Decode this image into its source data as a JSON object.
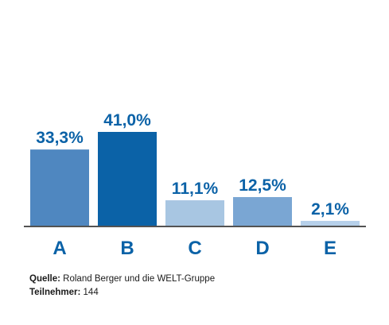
{
  "chart_data": {
    "type": "bar",
    "categories": [
      "A",
      "B",
      "C",
      "D",
      "E"
    ],
    "values": [
      33.3,
      41.0,
      11.1,
      12.5,
      2.1
    ],
    "value_labels": [
      "33,3%",
      "41,0%",
      "11,1%",
      "12,5%",
      "2,1%"
    ],
    "bar_colors": [
      "#4f87c0",
      "#0b62a7",
      "#a8c6e2",
      "#7aa6d3",
      "#b6d0ea"
    ],
    "label_color": "#0b62a7",
    "axis_color": "#1a1a1a",
    "ylim": [
      0,
      41.0
    ],
    "grid": false,
    "title": "",
    "xlabel": "",
    "ylabel": ""
  },
  "footer": {
    "source_label": "Quelle:",
    "source_text": " Roland Berger und die WELT-Gruppe",
    "participants_label": "Teilnehmer:",
    "participants_text": " 144"
  }
}
